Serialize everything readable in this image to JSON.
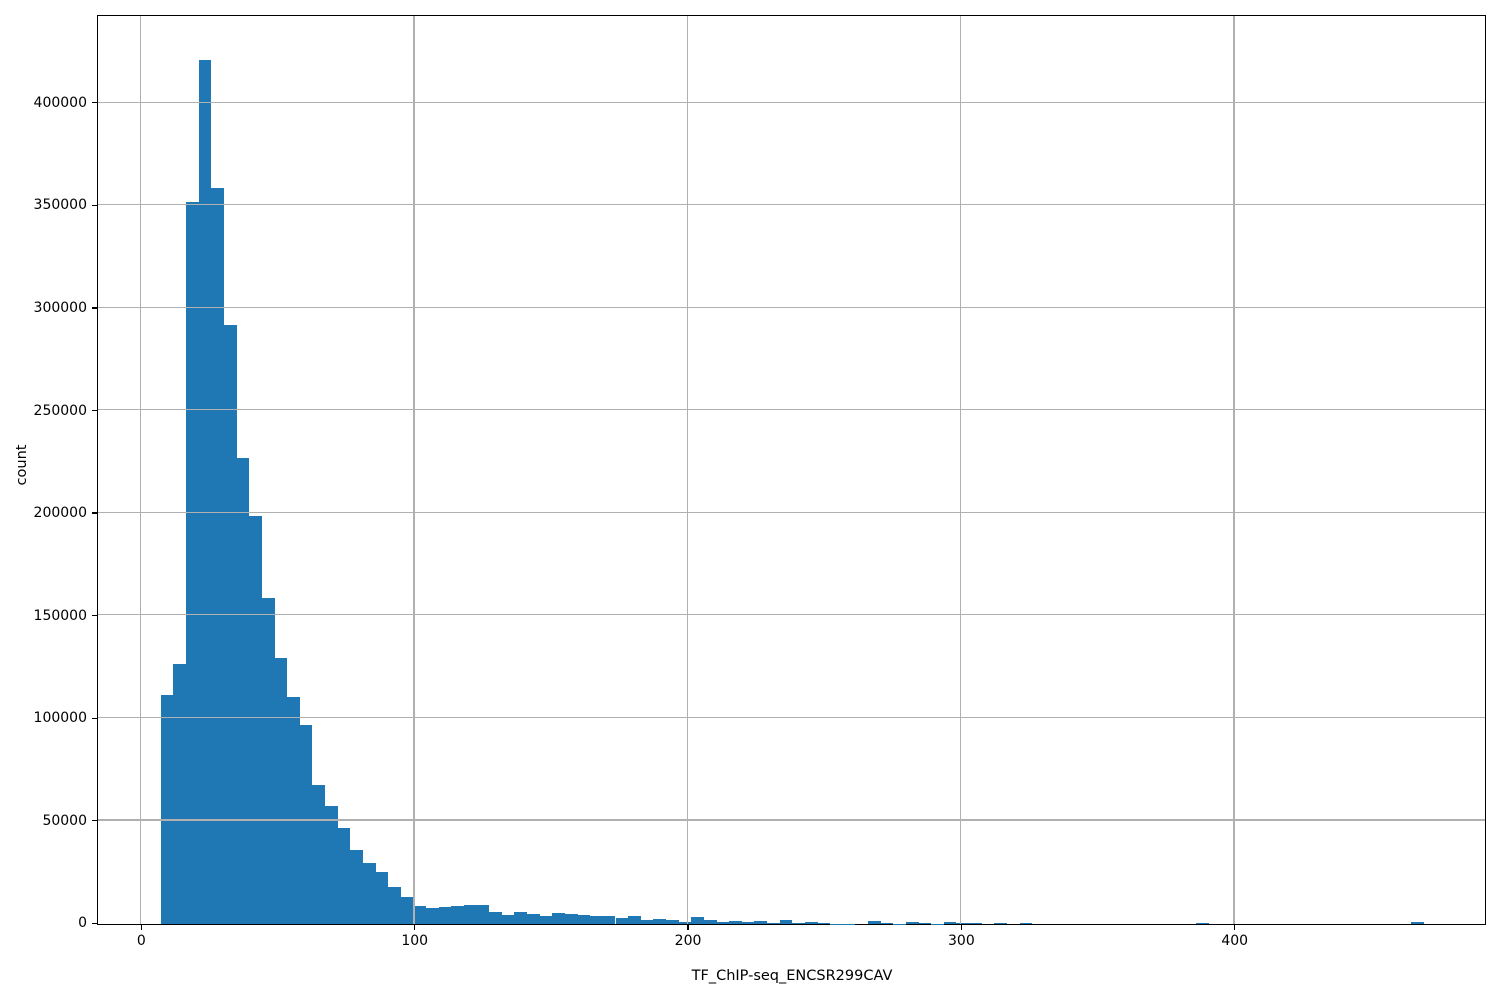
{
  "figure": {
    "xlabel": "TF_ChIP-seq_ENCSR299CAV",
    "ylabel": "count",
    "colors": {
      "bar": "#1f77b4",
      "grid": "#b0b0b0",
      "spine": "#000000",
      "text": "#000000",
      "background": "#ffffff"
    }
  },
  "chart_data": {
    "type": "bar",
    "subtype": "histogram",
    "title": "",
    "xlabel": "TF_ChIP-seq_ENCSR299CAV",
    "ylabel": "count",
    "grid": true,
    "grid_above_bars": true,
    "legend": null,
    "bin_start": 7.4,
    "bin_width": 4.62,
    "xlim": [
      -15.6,
      491.3
    ],
    "ylim": [
      0,
      442000
    ],
    "x_ticks": [
      0,
      100,
      200,
      300,
      400
    ],
    "x_tick_labels": [
      "0",
      "100",
      "200",
      "300",
      "400"
    ],
    "y_ticks": [
      0,
      50000,
      100000,
      150000,
      200000,
      250000,
      300000,
      350000,
      400000
    ],
    "y_tick_labels": [
      "0",
      "50000",
      "100000",
      "150000",
      "200000",
      "250000",
      "300000",
      "350000",
      "400000"
    ],
    "values": [
      111500,
      127000,
      352000,
      421000,
      359000,
      292000,
      227000,
      199000,
      159000,
      129500,
      110500,
      97000,
      68000,
      57500,
      47000,
      36300,
      29700,
      25600,
      18000,
      13000,
      8900,
      7700,
      8100,
      8900,
      9200,
      9200,
      5700,
      4400,
      5700,
      4800,
      3800,
      5500,
      4800,
      4500,
      3800,
      3800,
      2900,
      3800,
      1900,
      2500,
      2200,
      1200,
      3200,
      2200,
      1200,
      1400,
      800,
      1400,
      300,
      1900,
      300,
      1200,
      600,
      200,
      200,
      0,
      1400,
      600,
      100,
      900,
      600,
      100,
      900,
      600,
      600,
      0,
      600,
      0,
      600,
      0,
      0,
      0,
      0,
      0,
      0,
      0,
      0,
      0,
      0,
      0,
      0,
      0,
      600,
      0,
      0,
      0,
      0,
      0,
      0,
      0,
      0,
      0,
      0,
      0,
      0,
      0,
      0,
      0,
      0,
      1000
    ]
  }
}
